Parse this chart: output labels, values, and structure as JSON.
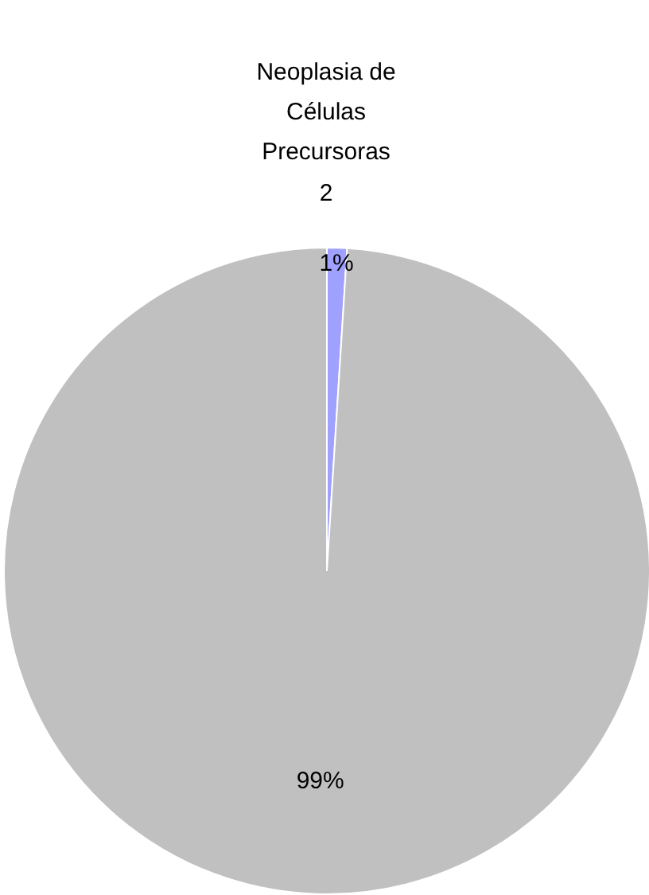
{
  "chart_data": {
    "type": "pie",
    "title": "Neoplasia de\nCélulas\nPrecursoras\n2",
    "categories": [
      null,
      null
    ],
    "values": [
      1,
      99
    ],
    "colors": [
      "#a0a0ff",
      "#c0c0c0"
    ],
    "value_labels": [
      "1%",
      "99%"
    ]
  }
}
